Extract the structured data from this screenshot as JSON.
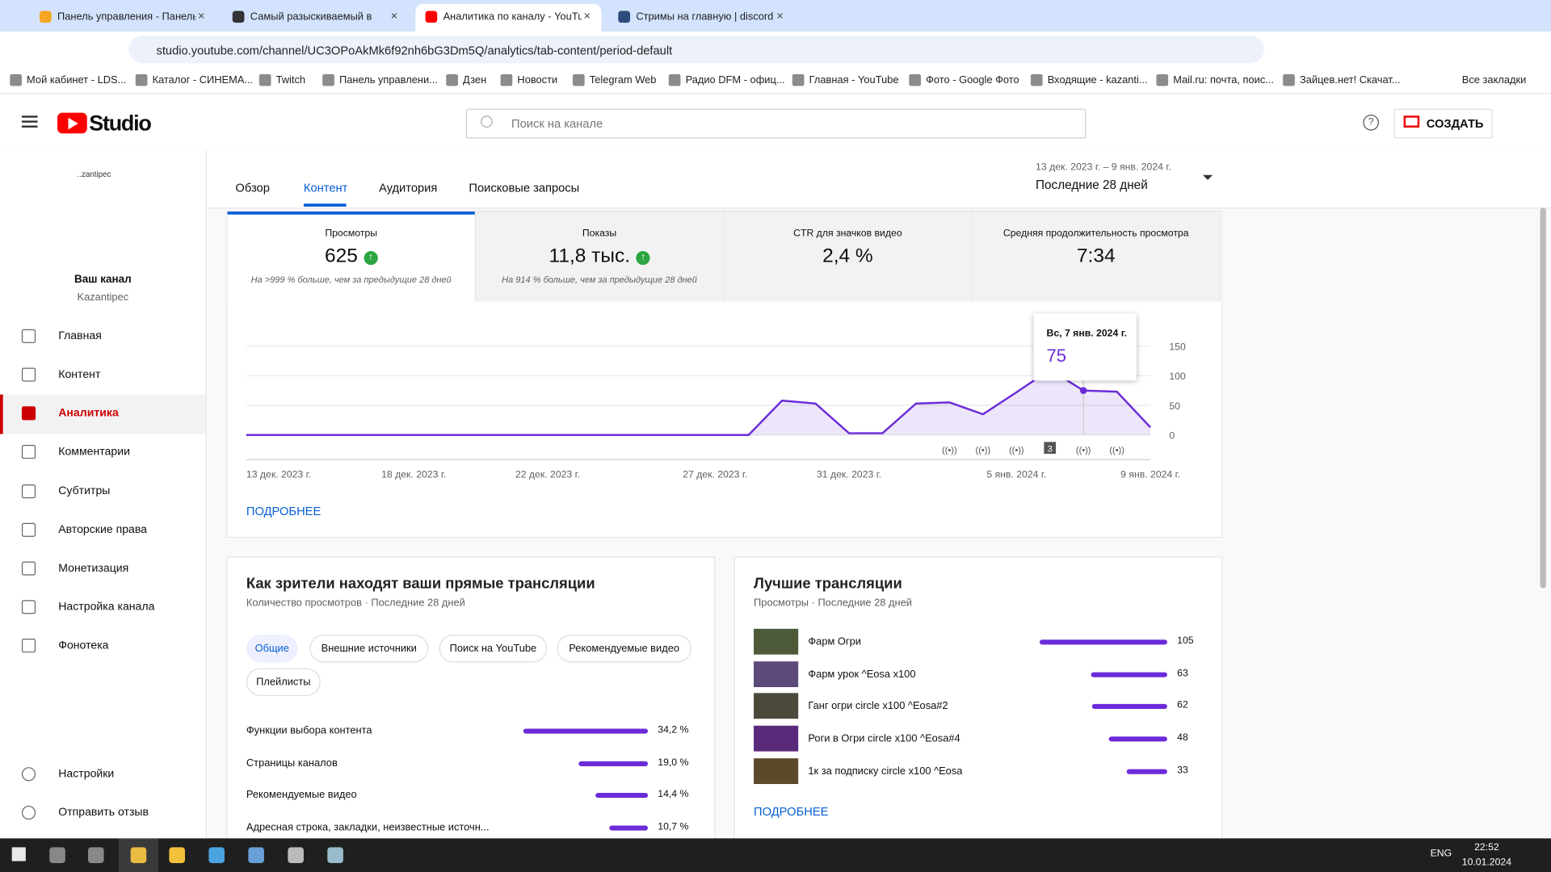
{
  "browser": {
    "tabs": [
      "Панель управления - Панель у",
      "Самый разыскиваемый в",
      "Аналитика по каналу - YouTub",
      "Стримы на главную | discord"
    ],
    "active_tab": 2,
    "url": "studio.youtube.com/channel/UC3OPoAkMk6f92nh6bG3Dm5Q/analytics/tab-content/period-default",
    "bookmarks": [
      "Мой кабинет - LDS...",
      "Каталог - СИНЕМА...",
      "Twitch",
      "Панель управлени...",
      "Дзен",
      "Новости",
      "Telegram Web",
      "Радио DFM - офиц...",
      "Главная - YouTube",
      "Фото - Google Фото",
      "Входящие - kazanti...",
      "Mail.ru: почта, поис...",
      "Зайцев.нет! Скачат..."
    ],
    "all_bookmarks": "Все закладки"
  },
  "header": {
    "logo": "Studio",
    "search": "Поиск на канале",
    "create": "СОЗДАТЬ"
  },
  "sidebar": {
    "avatar_alt": "..zantipec",
    "channel_title": "Ваш канал",
    "channel_name": "Kazantipec",
    "nav": [
      "Главная",
      "Контент",
      "Аналитика",
      "Комментарии",
      "Субтитры",
      "Авторские права",
      "Монетизация",
      "Настройка канала",
      "Фонотека"
    ],
    "active": 2,
    "footer": [
      "Настройки",
      "Отправить отзыв"
    ]
  },
  "tabs": {
    "items": [
      "Обзор",
      "Контент",
      "Аудитория",
      "Поисковые запросы"
    ],
    "active": 1
  },
  "date_range": {
    "range": "13 дек. 2023 г. – 9 янв. 2024 г.",
    "period": "Последние 28 дней"
  },
  "metrics": [
    {
      "label": "Просмотры",
      "value": "625",
      "note": "На >999 % больше, чем за предыдущие 28 дней",
      "up": true
    },
    {
      "label": "Показы",
      "value": "11,8 тыс.",
      "note": "На 914 % больше, чем за предыдущие 28 дней",
      "up": true
    },
    {
      "label": "CTR для значков видео",
      "value": "2,4 %",
      "up": false
    },
    {
      "label": "Средняя продолжительность просмотра",
      "value": "7:34",
      "up": false
    }
  ],
  "chart_data": {
    "type": "line",
    "color": "#6b2bd9",
    "categories": [
      "13 дек. 2023 г.",
      null,
      null,
      null,
      null,
      "18 дек. 2023 г.",
      null,
      null,
      null,
      "22 дек. 2023 г.",
      null,
      null,
      null,
      null,
      "27 дек. 2023 г.",
      null,
      null,
      null,
      "31 дек. 2023 г.",
      null,
      null,
      null,
      null,
      "5 янв. 2024 г.",
      null,
      null,
      null,
      "9 янв. 2024 г."
    ],
    "values": [
      0,
      0,
      0,
      0,
      0,
      0,
      0,
      0,
      0,
      0,
      0,
      0,
      0,
      0,
      0,
      0,
      58,
      53,
      3,
      3,
      53,
      55,
      35,
      72,
      110,
      75,
      73,
      13
    ],
    "ylim": [
      0,
      150
    ],
    "yticks": [
      0,
      50,
      100,
      150
    ],
    "grid": true,
    "tooltip_date": "Вс, 7 янв. 2024 г.",
    "badge": "3"
  },
  "chart_link": "ПОДРОБНЕЕ",
  "traffic": {
    "title": "Как зрители находят ваши прямые трансляции",
    "subtitle": "Количество просмотров · Последние 28 дней",
    "chips": [
      "Общие",
      "Внешние источники",
      "Поиск на YouTube",
      "Рекомендуемые видео",
      "Плейлисты"
    ],
    "active_chip": 0,
    "rows": [
      {
        "name": "Функции выбора контента",
        "value": 34.2,
        "value_label": "34,2 %"
      },
      {
        "name": "Страницы каналов",
        "value": 19.0,
        "value_label": "19,0 %"
      },
      {
        "name": "Рекомендуемые видео",
        "value": 14.4,
        "value_label": "14,4 %"
      },
      {
        "name": "Адресная строка, закладки, неизвестные источн...",
        "value": 10.7,
        "value_label": "10,7 %"
      }
    ]
  },
  "top_streams": {
    "title": "Лучшие трансляции",
    "subtitle": "Просмотры · Последние 28 дней",
    "rows": [
      {
        "name": "Фарм Огри",
        "value": 105
      },
      {
        "name": "Фарм урок ^Eosa x100",
        "value": 63
      },
      {
        "name": "Ганг огри circle x100 ^Eosa#2",
        "value": 62
      },
      {
        "name": "Роги в Огри circle x100 ^Eosa#4",
        "value": 48
      },
      {
        "name": "1к за подписку circle x100 ^Eosa",
        "value": 33
      }
    ],
    "link": "ПОДРОБНЕЕ"
  },
  "taskbar": {
    "lang": "ENG",
    "time": "22:52",
    "date": "10.01.2024"
  }
}
